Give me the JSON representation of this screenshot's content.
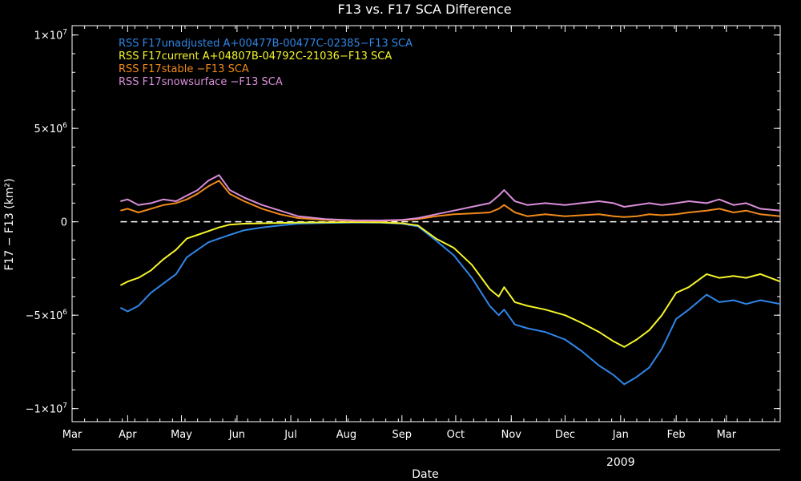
{
  "chart_data": {
    "type": "line",
    "title": "F13 vs. F17 SCA Difference",
    "xlabel": "Date",
    "ylabel": "F17 − F13 (km²)",
    "y_ticks": [
      {
        "value": 10000000,
        "label": "1×10",
        "exp": "7"
      },
      {
        "value": 5000000,
        "label": "5×10",
        "exp": "6"
      },
      {
        "value": 0,
        "label": "0",
        "exp": ""
      },
      {
        "value": -5000000,
        "label": "−5×10",
        "exp": "6"
      },
      {
        "value": -10000000,
        "label": "−1×10",
        "exp": "7"
      }
    ],
    "ylim": [
      -10700000,
      10500000
    ],
    "xlim": [
      "2008-03-01",
      "2009-03-31"
    ],
    "x_ticks": [
      {
        "date": "2008-03-01",
        "label": "Mar"
      },
      {
        "date": "2008-04-01",
        "label": "Apr"
      },
      {
        "date": "2008-05-01",
        "label": "May"
      },
      {
        "date": "2008-06-01",
        "label": "Jun"
      },
      {
        "date": "2008-07-01",
        "label": "Jul"
      },
      {
        "date": "2008-08-01",
        "label": "Aug"
      },
      {
        "date": "2008-09-01",
        "label": "Sep"
      },
      {
        "date": "2008-10-01",
        "label": "Oct"
      },
      {
        "date": "2008-11-01",
        "label": "Nov"
      },
      {
        "date": "2008-12-01",
        "label": "Dec"
      },
      {
        "date": "2009-01-01",
        "label": "Jan"
      },
      {
        "date": "2009-02-01",
        "label": "Feb"
      },
      {
        "date": "2009-03-01",
        "label": "Mar"
      }
    ],
    "year_label": {
      "date": "2009-01-01",
      "label": "2009"
    },
    "zero_line": 0,
    "legend_position": "top-left",
    "series": [
      {
        "name": "RSS F17unadjusted A+00477B-00477C-02385−F13 SCA",
        "color": "#2f86e8",
        "points": [
          [
            "2008-03-28",
            -4600000
          ],
          [
            "2008-04-01",
            -4800000
          ],
          [
            "2008-04-07",
            -4500000
          ],
          [
            "2008-04-14",
            -3800000
          ],
          [
            "2008-04-21",
            -3300000
          ],
          [
            "2008-04-28",
            -2800000
          ],
          [
            "2008-05-04",
            -1900000
          ],
          [
            "2008-05-10",
            -1500000
          ],
          [
            "2008-05-16",
            -1100000
          ],
          [
            "2008-05-22",
            -900000
          ],
          [
            "2008-05-28",
            -700000
          ],
          [
            "2008-06-05",
            -450000
          ],
          [
            "2008-06-15",
            -300000
          ],
          [
            "2008-06-25",
            -200000
          ],
          [
            "2008-07-05",
            -100000
          ],
          [
            "2008-07-20",
            -60000
          ],
          [
            "2008-08-05",
            -40000
          ],
          [
            "2008-08-20",
            -50000
          ],
          [
            "2008-09-01",
            -100000
          ],
          [
            "2008-09-10",
            -250000
          ],
          [
            "2008-09-20",
            -1000000
          ],
          [
            "2008-09-30",
            -1800000
          ],
          [
            "2008-10-10",
            -3000000
          ],
          [
            "2008-10-20",
            -4500000
          ],
          [
            "2008-10-25",
            -5000000
          ],
          [
            "2008-10-28",
            -4700000
          ],
          [
            "2008-11-03",
            -5500000
          ],
          [
            "2008-11-10",
            -5700000
          ],
          [
            "2008-11-20",
            -5900000
          ],
          [
            "2008-12-01",
            -6300000
          ],
          [
            "2008-12-10",
            -6900000
          ],
          [
            "2008-12-20",
            -7700000
          ],
          [
            "2008-12-28",
            -8200000
          ],
          [
            "2009-01-03",
            -8700000
          ],
          [
            "2009-01-10",
            -8300000
          ],
          [
            "2009-01-17",
            -7800000
          ],
          [
            "2009-01-24",
            -6800000
          ],
          [
            "2009-02-01",
            -5200000
          ],
          [
            "2009-02-08",
            -4700000
          ],
          [
            "2009-02-18",
            -3900000
          ],
          [
            "2009-02-25",
            -4300000
          ],
          [
            "2009-03-05",
            -4200000
          ],
          [
            "2009-03-12",
            -4400000
          ],
          [
            "2009-03-20",
            -4200000
          ],
          [
            "2009-03-31",
            -4400000
          ]
        ]
      },
      {
        "name": "RSS F17current A+04807B-04792C-21036−F13 SCA",
        "color": "#f5f52a",
        "points": [
          [
            "2008-03-28",
            -3400000
          ],
          [
            "2008-04-01",
            -3200000
          ],
          [
            "2008-04-07",
            -3000000
          ],
          [
            "2008-04-14",
            -2600000
          ],
          [
            "2008-04-21",
            -2000000
          ],
          [
            "2008-04-28",
            -1500000
          ],
          [
            "2008-05-04",
            -900000
          ],
          [
            "2008-05-10",
            -700000
          ],
          [
            "2008-05-16",
            -500000
          ],
          [
            "2008-05-22",
            -300000
          ],
          [
            "2008-05-28",
            -150000
          ],
          [
            "2008-06-05",
            -100000
          ],
          [
            "2008-06-15",
            -80000
          ],
          [
            "2008-06-25",
            -60000
          ],
          [
            "2008-07-05",
            -40000
          ],
          [
            "2008-07-20",
            -30000
          ],
          [
            "2008-08-05",
            -20000
          ],
          [
            "2008-08-20",
            -30000
          ],
          [
            "2008-09-01",
            -80000
          ],
          [
            "2008-09-10",
            -200000
          ],
          [
            "2008-09-20",
            -900000
          ],
          [
            "2008-09-30",
            -1400000
          ],
          [
            "2008-10-10",
            -2300000
          ],
          [
            "2008-10-20",
            -3600000
          ],
          [
            "2008-10-25",
            -4000000
          ],
          [
            "2008-10-28",
            -3500000
          ],
          [
            "2008-11-03",
            -4300000
          ],
          [
            "2008-11-10",
            -4500000
          ],
          [
            "2008-11-20",
            -4700000
          ],
          [
            "2008-12-01",
            -5000000
          ],
          [
            "2008-12-10",
            -5400000
          ],
          [
            "2008-12-20",
            -5900000
          ],
          [
            "2008-12-28",
            -6400000
          ],
          [
            "2009-01-03",
            -6700000
          ],
          [
            "2009-01-10",
            -6300000
          ],
          [
            "2009-01-17",
            -5800000
          ],
          [
            "2009-01-24",
            -5000000
          ],
          [
            "2009-02-01",
            -3800000
          ],
          [
            "2009-02-08",
            -3500000
          ],
          [
            "2009-02-18",
            -2800000
          ],
          [
            "2009-02-25",
            -3000000
          ],
          [
            "2009-03-05",
            -2900000
          ],
          [
            "2009-03-12",
            -3000000
          ],
          [
            "2009-03-20",
            -2800000
          ],
          [
            "2009-03-31",
            -3200000
          ]
        ]
      },
      {
        "name": "RSS F17stable −F13 SCA",
        "color": "#f08a1a",
        "points": [
          [
            "2008-03-28",
            600000
          ],
          [
            "2008-04-01",
            700000
          ],
          [
            "2008-04-07",
            500000
          ],
          [
            "2008-04-14",
            700000
          ],
          [
            "2008-04-21",
            900000
          ],
          [
            "2008-04-28",
            1000000
          ],
          [
            "2008-05-04",
            1200000
          ],
          [
            "2008-05-10",
            1500000
          ],
          [
            "2008-05-16",
            1900000
          ],
          [
            "2008-05-22",
            2200000
          ],
          [
            "2008-05-28",
            1500000
          ],
          [
            "2008-06-05",
            1100000
          ],
          [
            "2008-06-15",
            700000
          ],
          [
            "2008-06-25",
            400000
          ],
          [
            "2008-07-05",
            200000
          ],
          [
            "2008-07-20",
            100000
          ],
          [
            "2008-08-05",
            60000
          ],
          [
            "2008-08-20",
            50000
          ],
          [
            "2008-09-01",
            80000
          ],
          [
            "2008-09-10",
            150000
          ],
          [
            "2008-09-20",
            300000
          ],
          [
            "2008-09-30",
            400000
          ],
          [
            "2008-10-10",
            450000
          ],
          [
            "2008-10-20",
            500000
          ],
          [
            "2008-10-25",
            700000
          ],
          [
            "2008-10-28",
            900000
          ],
          [
            "2008-11-03",
            500000
          ],
          [
            "2008-11-10",
            300000
          ],
          [
            "2008-11-20",
            400000
          ],
          [
            "2008-12-01",
            300000
          ],
          [
            "2008-12-10",
            350000
          ],
          [
            "2008-12-20",
            400000
          ],
          [
            "2008-12-28",
            300000
          ],
          [
            "2009-01-03",
            250000
          ],
          [
            "2009-01-10",
            300000
          ],
          [
            "2009-01-17",
            400000
          ],
          [
            "2009-01-24",
            350000
          ],
          [
            "2009-02-01",
            400000
          ],
          [
            "2009-02-08",
            500000
          ],
          [
            "2009-02-18",
            600000
          ],
          [
            "2009-02-25",
            700000
          ],
          [
            "2009-03-05",
            500000
          ],
          [
            "2009-03-12",
            600000
          ],
          [
            "2009-03-20",
            400000
          ],
          [
            "2009-03-31",
            300000
          ]
        ]
      },
      {
        "name": "RSS F17snowsurface −F13 SCA",
        "color": "#d98ed9",
        "points": [
          [
            "2008-03-28",
            1100000
          ],
          [
            "2008-04-01",
            1200000
          ],
          [
            "2008-04-07",
            900000
          ],
          [
            "2008-04-14",
            1000000
          ],
          [
            "2008-04-21",
            1200000
          ],
          [
            "2008-04-28",
            1100000
          ],
          [
            "2008-05-04",
            1400000
          ],
          [
            "2008-05-10",
            1700000
          ],
          [
            "2008-05-16",
            2200000
          ],
          [
            "2008-05-22",
            2500000
          ],
          [
            "2008-05-28",
            1700000
          ],
          [
            "2008-06-05",
            1300000
          ],
          [
            "2008-06-15",
            900000
          ],
          [
            "2008-06-25",
            600000
          ],
          [
            "2008-07-05",
            300000
          ],
          [
            "2008-07-20",
            150000
          ],
          [
            "2008-08-05",
            80000
          ],
          [
            "2008-08-20",
            70000
          ],
          [
            "2008-09-01",
            100000
          ],
          [
            "2008-09-10",
            200000
          ],
          [
            "2008-09-20",
            400000
          ],
          [
            "2008-09-30",
            600000
          ],
          [
            "2008-10-10",
            800000
          ],
          [
            "2008-10-20",
            1000000
          ],
          [
            "2008-10-25",
            1400000
          ],
          [
            "2008-10-28",
            1700000
          ],
          [
            "2008-11-03",
            1100000
          ],
          [
            "2008-11-10",
            900000
          ],
          [
            "2008-11-20",
            1000000
          ],
          [
            "2008-12-01",
            900000
          ],
          [
            "2008-12-10",
            1000000
          ],
          [
            "2008-12-20",
            1100000
          ],
          [
            "2008-12-28",
            1000000
          ],
          [
            "2009-01-03",
            800000
          ],
          [
            "2009-01-10",
            900000
          ],
          [
            "2009-01-17",
            1000000
          ],
          [
            "2009-01-24",
            900000
          ],
          [
            "2009-02-01",
            1000000
          ],
          [
            "2009-02-08",
            1100000
          ],
          [
            "2009-02-18",
            1000000
          ],
          [
            "2009-02-25",
            1200000
          ],
          [
            "2009-03-05",
            900000
          ],
          [
            "2009-03-12",
            1000000
          ],
          [
            "2009-03-20",
            700000
          ],
          [
            "2009-03-31",
            600000
          ]
        ]
      }
    ]
  }
}
